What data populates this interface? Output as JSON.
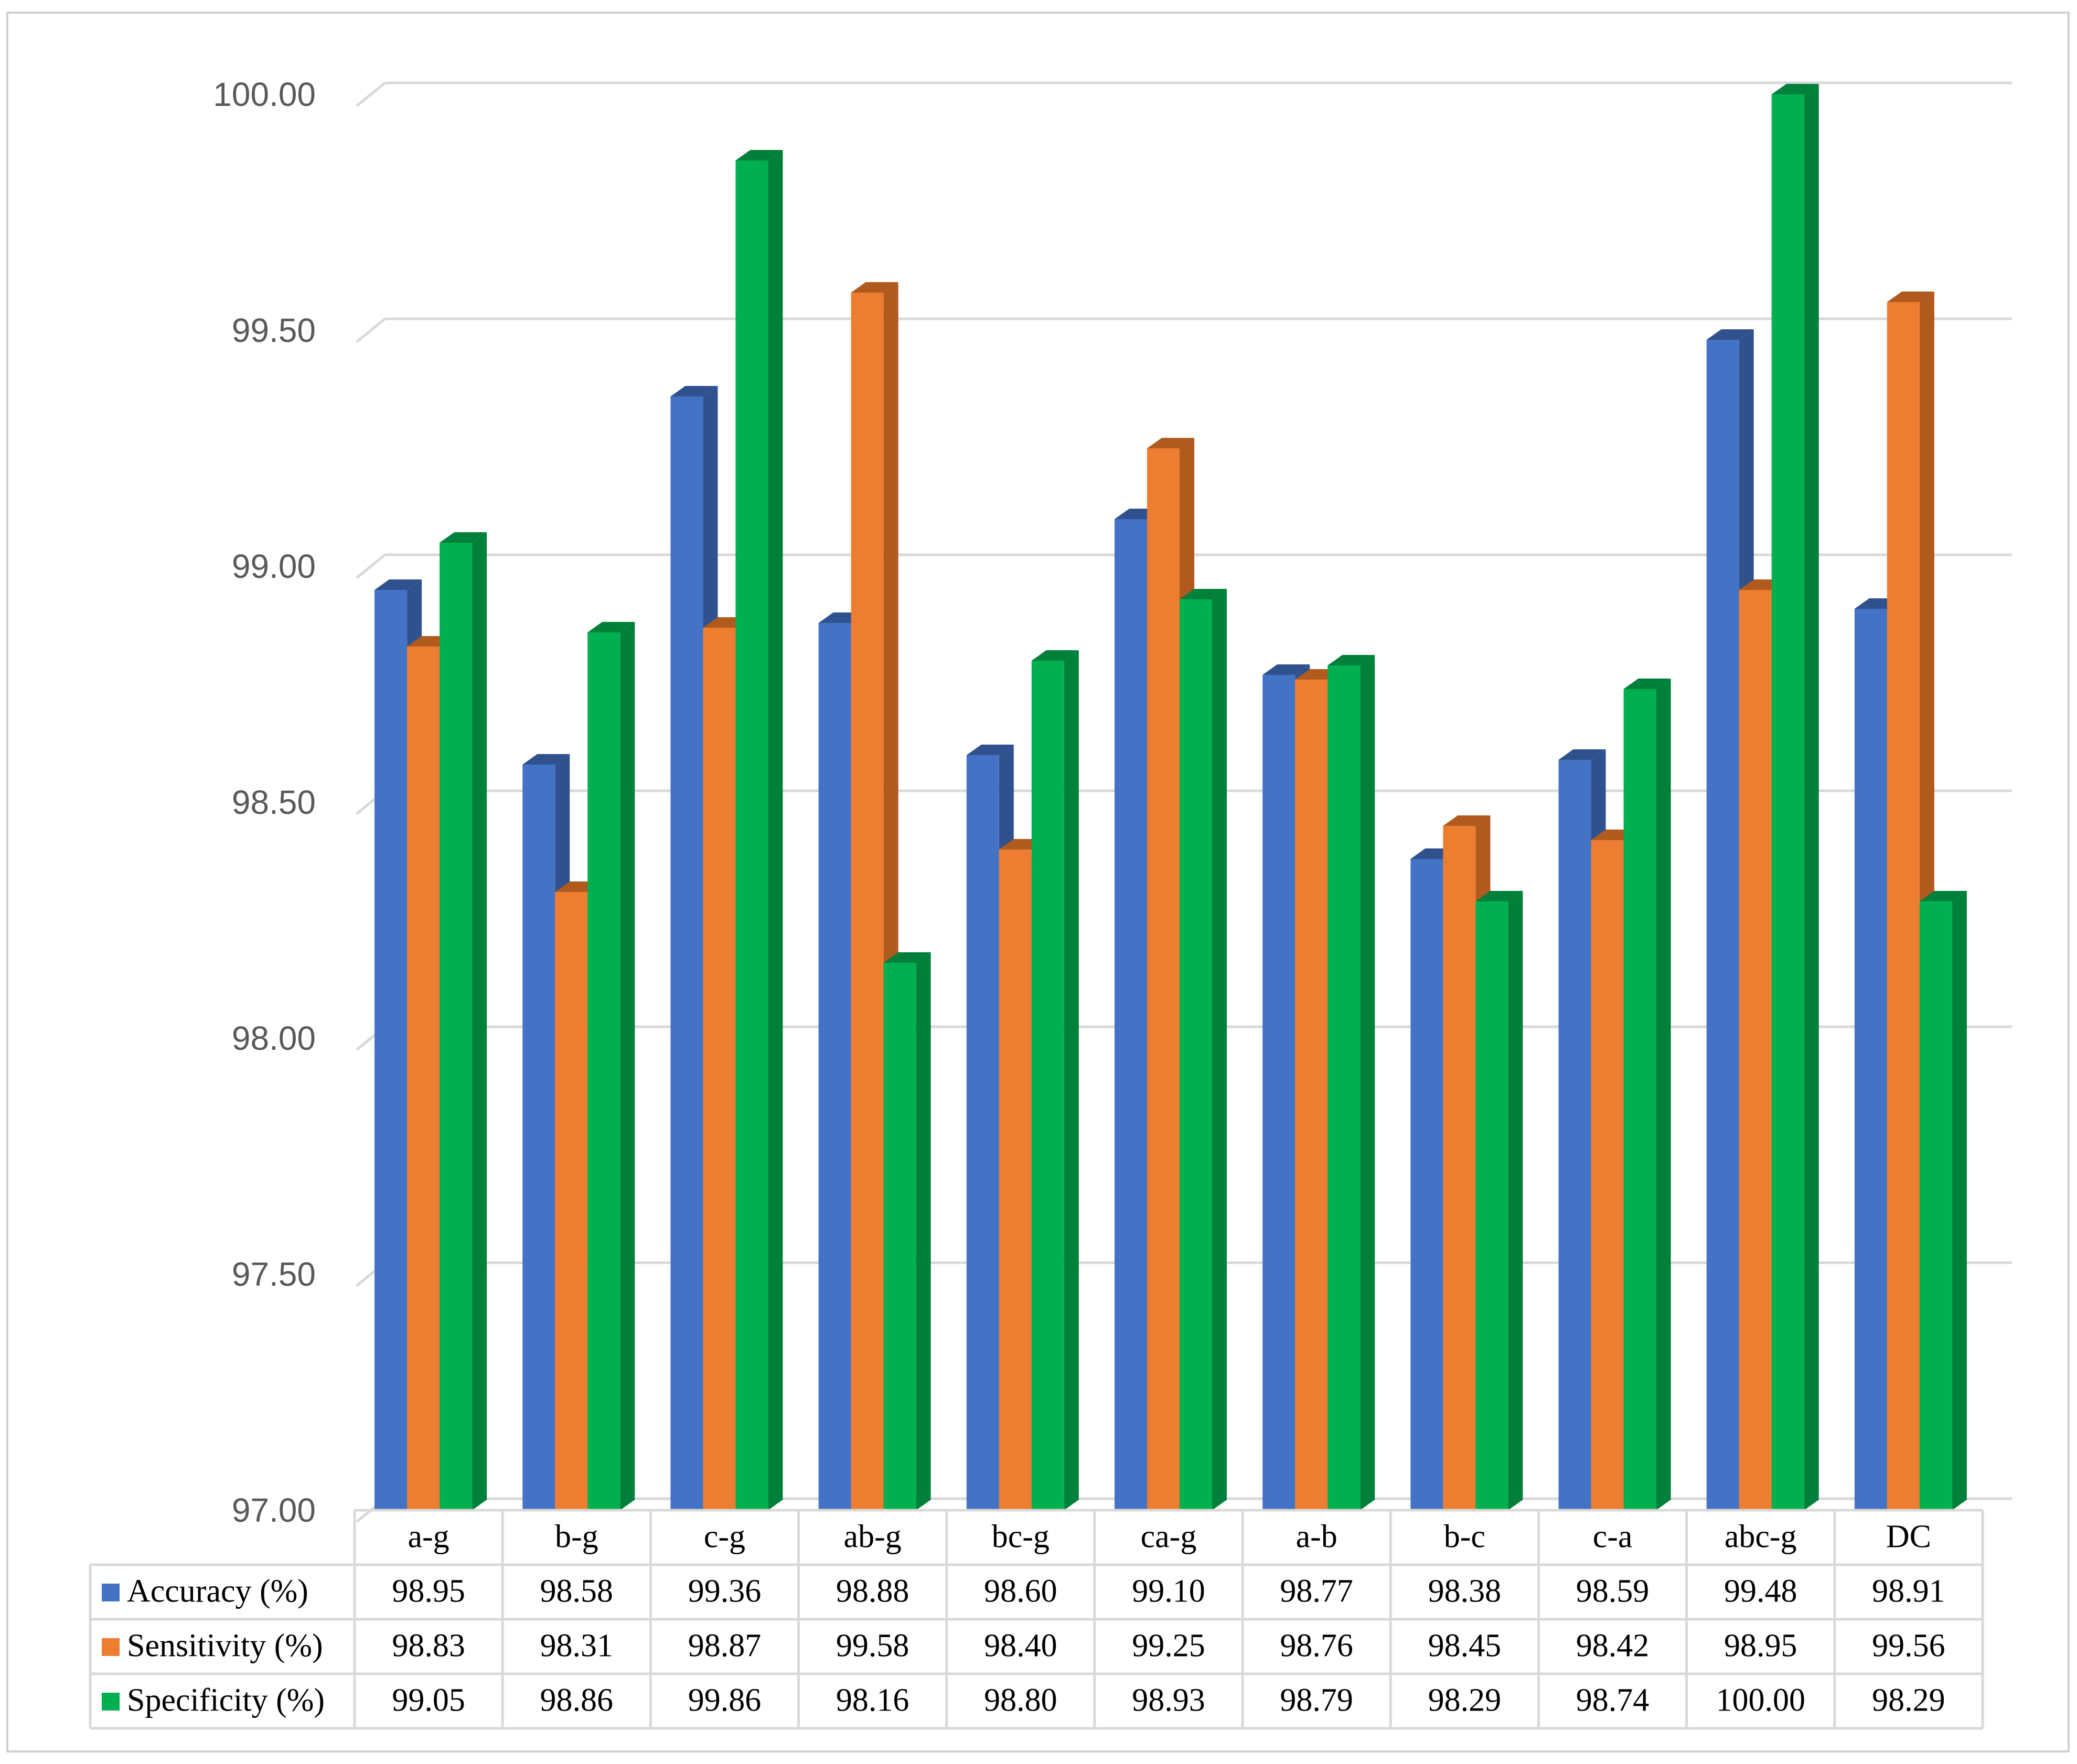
{
  "chart_data": {
    "type": "bar",
    "style": "3d-clustered-column-with-data-table",
    "categories": [
      "a-g",
      "b-g",
      "c-g",
      "ab-g",
      "bc-g",
      "ca-g",
      "a-b",
      "b-c",
      "c-a",
      "abc-g",
      "DC"
    ],
    "series": [
      {
        "name": "Accuracy (%)",
        "color": "#4472C4",
        "side_color": "#2F528F",
        "values": [
          98.95,
          98.58,
          99.36,
          98.88,
          98.6,
          99.1,
          98.77,
          98.38,
          98.59,
          99.48,
          98.91
        ],
        "labels": [
          "98.95",
          "98.58",
          "99.36",
          "98.88",
          "98.60",
          "99.10",
          "98.77",
          "98.38",
          "98.59",
          "99.48",
          "98.91"
        ]
      },
      {
        "name": "Sensitivity (%)",
        "color": "#ED7D31",
        "side_color": "#B05A1E",
        "values": [
          98.83,
          98.31,
          98.87,
          99.58,
          98.4,
          99.25,
          98.76,
          98.45,
          98.42,
          98.95,
          99.56
        ],
        "labels": [
          "98.83",
          "98.31",
          "98.87",
          "99.58",
          "98.40",
          "99.25",
          "98.76",
          "98.45",
          "98.42",
          "98.95",
          "99.56"
        ]
      },
      {
        "name": "Specificity (%)",
        "color": "#00B050",
        "side_color": "#00803A",
        "values": [
          99.05,
          98.86,
          99.86,
          98.16,
          98.8,
          98.93,
          98.79,
          98.29,
          98.74,
          100.0,
          98.29
        ],
        "labels": [
          "99.05",
          "98.86",
          "99.86",
          "98.16",
          "98.80",
          "98.93",
          "98.79",
          "98.29",
          "98.74",
          "100.00",
          "98.29"
        ]
      }
    ],
    "ylim": [
      97.0,
      100.0
    ],
    "yticks": [
      97.0,
      97.5,
      98.0,
      98.5,
      99.0,
      99.5,
      100.0
    ],
    "ytick_labels": [
      "97.00",
      "97.50",
      "98.00",
      "98.50",
      "99.00",
      "99.50",
      "100.00"
    ],
    "grid": true,
    "legend": "data-table-below",
    "title": "",
    "xlabel": "",
    "ylabel": ""
  }
}
